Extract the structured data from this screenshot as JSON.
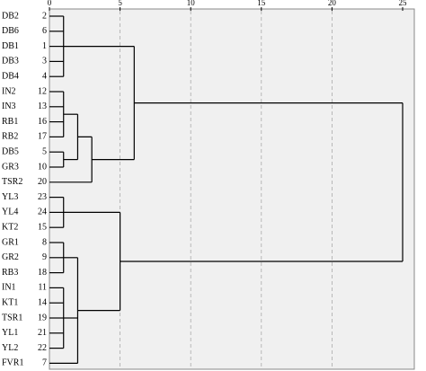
{
  "chart_data": {
    "type": "dendrogram",
    "leaves": [
      {
        "label": "DB2",
        "case": 2
      },
      {
        "label": "DB6",
        "case": 6
      },
      {
        "label": "DB1",
        "case": 1
      },
      {
        "label": "DB3",
        "case": 3
      },
      {
        "label": "DB4",
        "case": 4
      },
      {
        "label": "IN2",
        "case": 12
      },
      {
        "label": "IN3",
        "case": 13
      },
      {
        "label": "RB1",
        "case": 16
      },
      {
        "label": "RB2",
        "case": 17
      },
      {
        "label": "DB5",
        "case": 5
      },
      {
        "label": "GR3",
        "case": 10
      },
      {
        "label": "TSR2",
        "case": 20
      },
      {
        "label": "YL3",
        "case": 23
      },
      {
        "label": "YL4",
        "case": 24
      },
      {
        "label": "KT2",
        "case": 15
      },
      {
        "label": "GR1",
        "case": 8
      },
      {
        "label": "GR2",
        "case": 9
      },
      {
        "label": "RB3",
        "case": 18
      },
      {
        "label": "IN1",
        "case": 11
      },
      {
        "label": "KT1",
        "case": 14
      },
      {
        "label": "TSR1",
        "case": 19
      },
      {
        "label": "YL1",
        "case": 21
      },
      {
        "label": "YL2",
        "case": 22
      },
      {
        "label": "FVR1",
        "case": 7
      }
    ],
    "merges": [
      {
        "leaves": [
          0,
          1,
          2,
          3,
          4
        ],
        "clusters": [],
        "height": 1
      },
      {
        "leaves": [
          5,
          6,
          7,
          8
        ],
        "clusters": [],
        "height": 1
      },
      {
        "leaves": [
          9,
          10
        ],
        "clusters": [],
        "height": 1
      },
      {
        "leaves": [],
        "clusters": [
          1,
          2
        ],
        "height": 2
      },
      {
        "leaves": [
          11
        ],
        "clusters": [
          3
        ],
        "height": 3
      },
      {
        "leaves": [],
        "clusters": [
          0,
          4
        ],
        "height": 6
      },
      {
        "leaves": [
          12,
          13,
          14
        ],
        "clusters": [],
        "height": 1
      },
      {
        "leaves": [
          15,
          16,
          17
        ],
        "clusters": [],
        "height": 1
      },
      {
        "leaves": [
          18,
          19,
          20,
          21,
          22
        ],
        "clusters": [],
        "height": 1
      },
      {
        "leaves": [
          23
        ],
        "clusters": [
          7,
          8
        ],
        "height": 2
      },
      {
        "leaves": [],
        "clusters": [
          6,
          9
        ],
        "height": 5
      },
      {
        "leaves": [],
        "clusters": [
          5,
          10
        ],
        "height": 25
      }
    ],
    "xlim": [
      0,
      25
    ],
    "xticks": [
      0,
      5,
      10,
      15,
      20,
      25
    ],
    "grid": true,
    "background": "#f0f0f0",
    "color": "#000000"
  }
}
